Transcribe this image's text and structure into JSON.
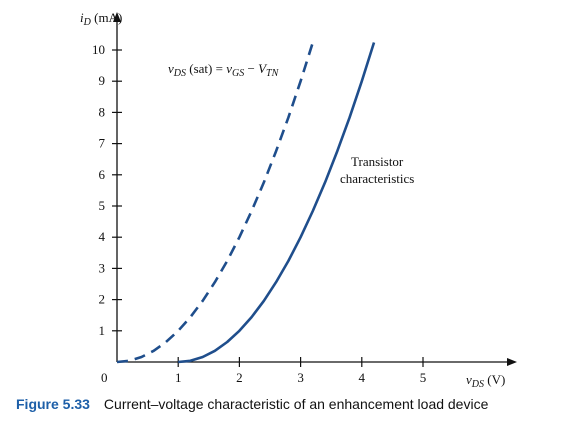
{
  "chart_data": {
    "type": "line",
    "ylabel_symbol": "i",
    "ylabel_sub": "D",
    "ylabel_unit": " (mA)",
    "xlabel_symbol": "v",
    "xlabel_sub": "DS",
    "xlabel_unit": " (V)",
    "xlim": [
      0,
      6.5
    ],
    "ylim": [
      0,
      11
    ],
    "origin_label": "0",
    "xticks": [
      1,
      2,
      3,
      4,
      5
    ],
    "yticks": [
      1,
      2,
      3,
      4,
      5,
      6,
      7,
      8,
      9,
      10
    ],
    "series": [
      {
        "name": "Transistor characteristics",
        "style": "solid",
        "x": [
          1.0,
          1.2,
          1.4,
          1.6,
          1.8,
          2.0,
          2.2,
          2.4,
          2.6,
          2.8,
          3.0,
          3.2,
          3.4,
          3.6,
          3.8,
          4.0,
          4.2
        ],
        "y": [
          0.0,
          0.04,
          0.16,
          0.36,
          0.64,
          1.0,
          1.44,
          1.96,
          2.56,
          3.24,
          4.0,
          4.84,
          5.76,
          6.76,
          7.84,
          9.0,
          10.24
        ]
      },
      {
        "name": "vDS(sat) = vGS − VTN",
        "style": "dashed",
        "x": [
          0.0,
          0.2,
          0.4,
          0.6,
          0.8,
          1.0,
          1.2,
          1.4,
          1.6,
          1.8,
          2.0,
          2.2,
          2.4,
          2.6,
          2.8,
          3.0,
          3.2
        ],
        "y": [
          0.0,
          0.04,
          0.16,
          0.36,
          0.64,
          1.0,
          1.44,
          1.96,
          2.56,
          3.24,
          4.0,
          4.84,
          5.76,
          6.76,
          7.84,
          9.0,
          10.24
        ]
      }
    ],
    "annotations": {
      "sat_v": "v",
      "sat_v_sub": "DS",
      "sat_mid": " (sat) = ",
      "sat_vgs": "v",
      "sat_vgs_sub": "GS",
      "sat_minus": " − ",
      "sat_vtn": "V",
      "sat_vtn_sub": "TN",
      "transistor_line1": "Transistor",
      "transistor_line2": "characteristics"
    },
    "colors": {
      "curve": "#1f4e8c",
      "axis": "#111111"
    }
  },
  "caption": {
    "figure": "Figure 5.33",
    "text": "Current–voltage characteristic of an enhancement load device"
  }
}
